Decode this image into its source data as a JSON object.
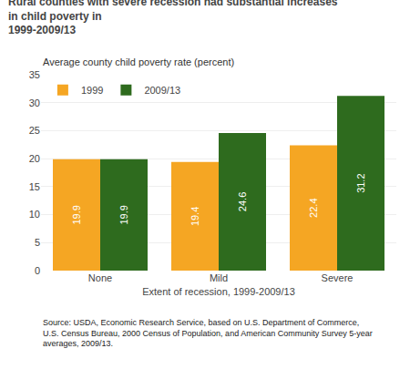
{
  "chart_data": {
    "type": "bar",
    "title": "Rural counties with severe recession had substantial increases in child poverty in\n1999-2009/13",
    "ylabel": "Average county child poverty rate (percent)",
    "xlabel": "Extent of recession, 1999-2009/13",
    "categories": [
      "None",
      "Mild",
      "Severe"
    ],
    "series": [
      {
        "name": "1999",
        "color": "#F5A623",
        "values": [
          19.9,
          19.4,
          22.4
        ]
      },
      {
        "name": "2009/13",
        "color": "#2E6B1E",
        "values": [
          19.9,
          24.6,
          31.2
        ]
      }
    ],
    "ylim": [
      0,
      35
    ],
    "yticks": [
      0,
      5,
      10,
      15,
      20,
      25,
      30,
      35
    ],
    "grid": true,
    "legend": "upper left",
    "data_labels": true,
    "annotations": [
      "Source: USDA, Economic Research Service, based on U.S. Department of Commerce,\nU.S. Census Bureau, 2000 Census of Population, and American Community Survey 5-year\naverages, 2009/13."
    ]
  }
}
